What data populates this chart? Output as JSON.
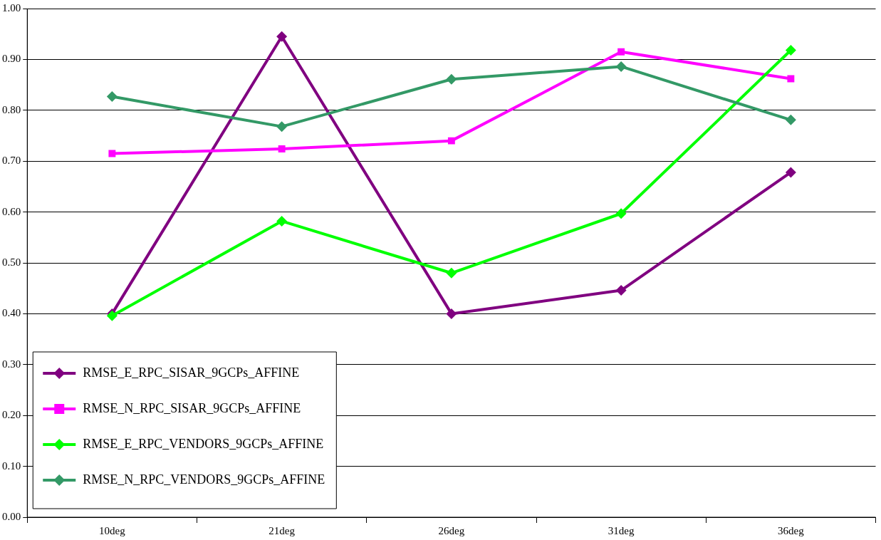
{
  "chart_data": {
    "type": "line",
    "categories": [
      "10deg",
      "21deg",
      "26deg",
      "31deg",
      "36deg"
    ],
    "series": [
      {
        "name": "RMSE_E_RPC_SISAR_9GCPs_AFFINE",
        "color": "#800080",
        "marker": "diamond",
        "values": [
          0.4,
          0.945,
          0.4,
          0.446,
          0.678
        ]
      },
      {
        "name": "RMSE_N_RPC_SISAR_9GCPs_AFFINE",
        "color": "#ff00ff",
        "marker": "square",
        "values": [
          0.715,
          0.724,
          0.74,
          0.915,
          0.862
        ]
      },
      {
        "name": "RMSE_E_RPC_VENDORS_9GCPs_AFFINE",
        "color": "#00ff00",
        "marker": "diamond",
        "values": [
          0.396,
          0.582,
          0.48,
          0.597,
          0.918
        ]
      },
      {
        "name": "RMSE_N_RPC_VENDORS_9GCPs_AFFINE",
        "color": "#339966",
        "marker": "diamond",
        "values": [
          0.827,
          0.768,
          0.861,
          0.886,
          0.781
        ]
      }
    ],
    "ylim": [
      0,
      1
    ],
    "yticks": [
      {
        "value": 0,
        "label": "0.00"
      },
      {
        "value": 0.1,
        "label": "0.10"
      },
      {
        "value": 0.2,
        "label": "0.20"
      },
      {
        "value": 0.3,
        "label": "0.30"
      },
      {
        "value": 0.4,
        "label": "0.40"
      },
      {
        "value": 0.5,
        "label": "0.50"
      },
      {
        "value": 0.6,
        "label": "0.60"
      },
      {
        "value": 0.7,
        "label": "0.70"
      },
      {
        "value": 0.8,
        "label": "0.80"
      },
      {
        "value": 0.9,
        "label": "0.90"
      },
      {
        "value": 1,
        "label": "1.00"
      }
    ],
    "grid": "y",
    "legend": "bottom left",
    "line_style": "solid"
  }
}
